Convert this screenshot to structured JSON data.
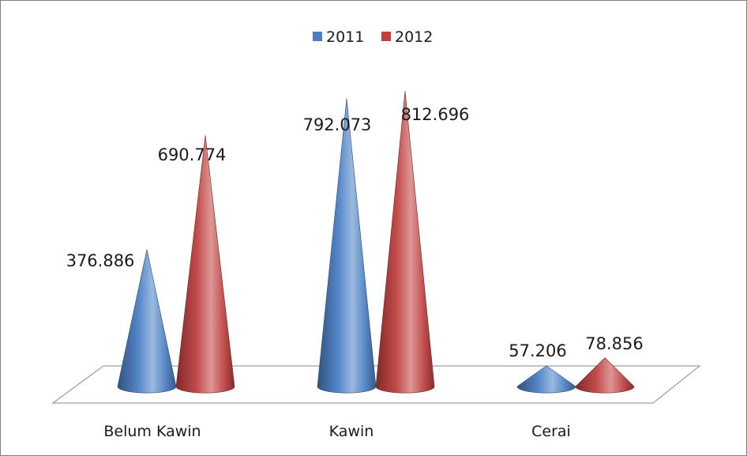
{
  "chart_data": {
    "type": "bar",
    "style": "3d-cone",
    "categories": [
      "Belum Kawin",
      "Kawin",
      "Cerai"
    ],
    "series": [
      {
        "name": "2011",
        "values": [
          376.886,
          792.073,
          57.206
        ],
        "color": "#4a7fc4"
      },
      {
        "name": "2012",
        "values": [
          690.774,
          812.696,
          78.856
        ],
        "color": "#c0403f"
      }
    ],
    "data_labels": {
      "2011": [
        "376.886",
        "792.073",
        "57.206"
      ],
      "2012": [
        "690.774",
        "812.696",
        "78.856"
      ]
    },
    "ylim": [
      0,
      900
    ],
    "legend_position": "top",
    "grid": false,
    "title": "",
    "xlabel": "",
    "ylabel": ""
  }
}
